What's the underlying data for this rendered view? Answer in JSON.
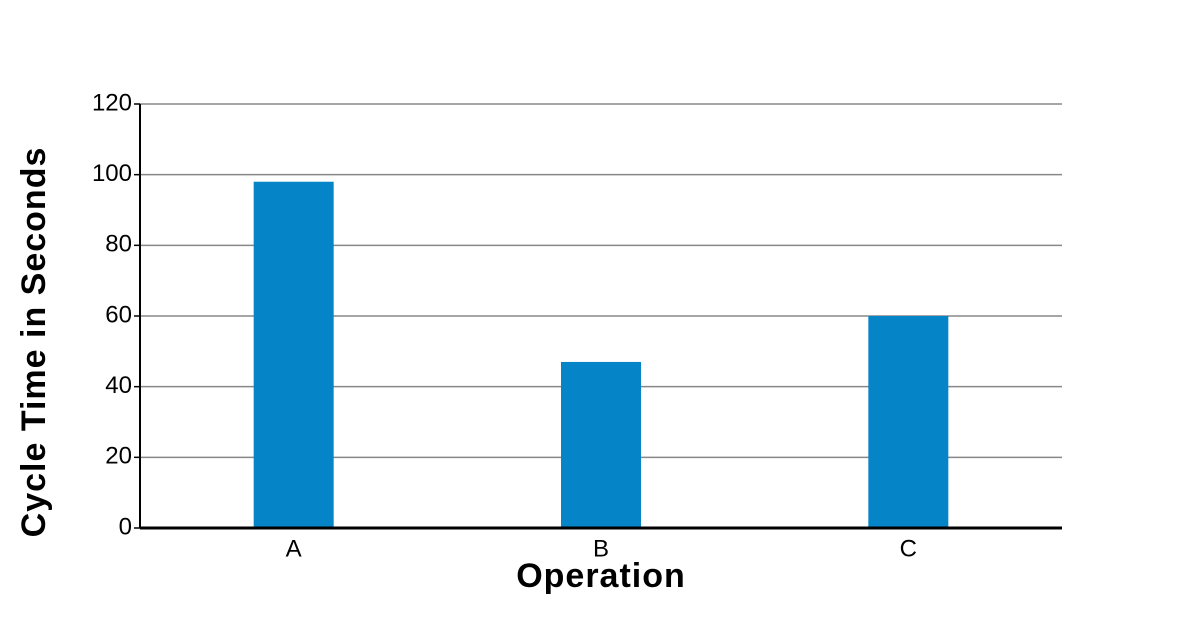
{
  "chart_data": {
    "type": "bar",
    "x_label": "Operation",
    "y_label": "Cycle Time in Seconds",
    "categories": [
      "A",
      "B",
      "C"
    ],
    "values": [
      98,
      47,
      60
    ],
    "color": "#0584c7",
    "ylim": [
      0,
      120
    ],
    "yticks": [
      0,
      20,
      40,
      60,
      80,
      100,
      120
    ],
    "grid": true
  }
}
